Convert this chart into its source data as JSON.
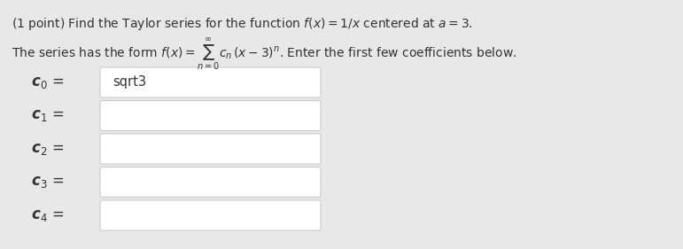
{
  "background_color": "#e8e8e8",
  "text_color": "#333333",
  "box_fill_color": "#ffffff",
  "box_edge_color": "#cccccc",
  "title_line1": "(1 point) Find the Taylor series for the function $f(x) = 1/x$ centered at $a = 3$.",
  "title_line2": "The series has the form $f(x) = \\sum_{n=0}^{\\infty} c_n\\,(x - 3)^n$. Enter the first few coefficients below.",
  "labels": [
    "$\\mathbf{\\it{c}}_0$",
    "$\\mathbf{\\it{c}}_1$",
    "$\\mathbf{\\it{c}}_2$",
    "$\\mathbf{\\it{c}}_3$",
    "$\\mathbf{\\it{c}}_4$"
  ],
  "label_texts": [
    "c_0",
    "c_1",
    "c_2",
    "c_3",
    "c_4"
  ],
  "first_value": "sqrt3",
  "fontsize_title": 10.0,
  "fontsize_labels": 12.0,
  "fontsize_input": 10.5
}
